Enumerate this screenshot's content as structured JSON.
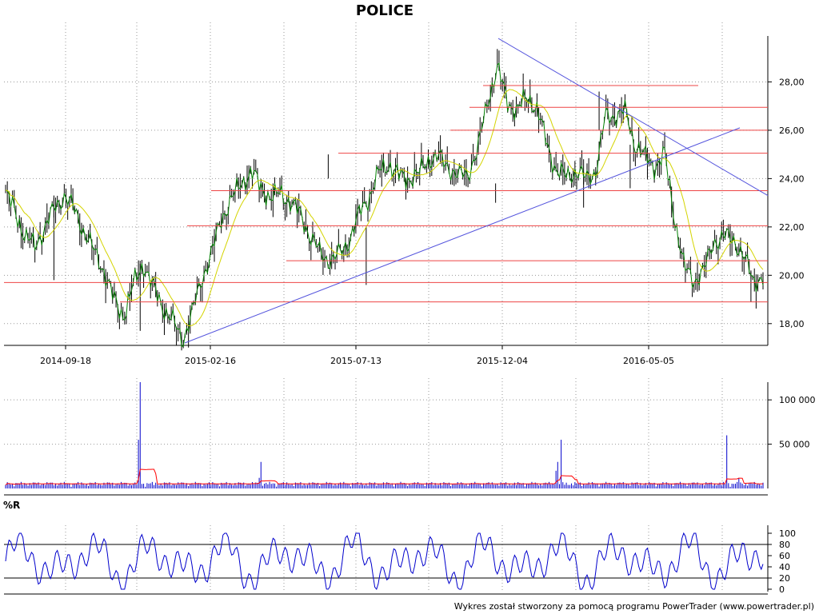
{
  "chart_data": [
    {
      "type": "candlestick",
      "title": "POLICE",
      "x_tick_labels": [
        "2014-09-18",
        "2015-02-16",
        "2015-07-13",
        "2015-12-04",
        "2016-05-05"
      ],
      "y_ticks": [
        "18,00",
        "20,00",
        "22,00",
        "24,00",
        "26,00",
        "28,00"
      ],
      "ylim": [
        17.1,
        29.9
      ],
      "grid": true,
      "close_series": [
        23.4,
        22.6,
        21.6,
        21.2,
        22.0,
        22.8,
        23.3,
        22.7,
        21.8,
        21.0,
        20.2,
        19.0,
        18.3,
        19.6,
        20.5,
        19.5,
        18.7,
        18.1,
        17.3,
        18.5,
        19.9,
        21.0,
        22.4,
        23.2,
        23.8,
        24.3,
        23.6,
        23.2,
        23.4,
        23.0,
        22.5,
        21.6,
        20.9,
        20.6,
        20.9,
        21.5,
        22.6,
        23.3,
        24.3,
        24.6,
        24.1,
        24.0,
        24.2,
        24.8,
        24.9,
        24.5,
        24.1,
        24.2,
        25.2,
        27.2,
        28.6,
        27.2,
        26.8,
        27.4,
        26.9,
        25.5,
        24.3,
        24.1,
        24.3,
        24.0,
        24.3,
        26.6,
        26.6,
        26.8,
        25.4,
        24.9,
        24.5,
        25.0,
        22.4,
        20.3,
        19.8,
        20.2,
        21.4,
        21.6,
        21.5,
        20.8,
        19.8,
        19.9
      ],
      "horizontal_levels": [
        27.85,
        26.95,
        26.0,
        25.05,
        23.5,
        22.05,
        20.6,
        19.7,
        18.9
      ],
      "trend_lines": [
        {
          "from": [
            "2015-02-16",
            17.2
          ],
          "to": [
            "2016-07",
            26.1
          ]
        },
        {
          "from": [
            "2015-12",
            29.8
          ],
          "to": [
            "2016-09",
            23.3
          ]
        }
      ],
      "moving_average": "yellow",
      "colors": {
        "candles": "#000000",
        "close_line": "#008000",
        "ma": "#d4d400",
        "levels": "#ee4444",
        "trend": "#5555dd"
      }
    },
    {
      "type": "bar",
      "name": "volume",
      "y_ticks": [
        "50 000",
        "100 000"
      ],
      "ylim": [
        0,
        120000
      ],
      "peaks": [
        120000,
        55000,
        60000
      ],
      "colors": {
        "bars": "#0000cc",
        "ma": "#ff0000"
      }
    },
    {
      "type": "line",
      "name": "%R",
      "label": "%R",
      "y_ticks": [
        "0",
        "20",
        "40",
        "60",
        "80",
        "100"
      ],
      "ylim": [
        0,
        100
      ],
      "reference_levels": [
        20,
        80
      ],
      "colors": {
        "line": "#0000cc",
        "levels": "#000000"
      }
    }
  ],
  "footer": "Wykres został stworzony za pomocą programu PowerTrader (www.powertrader.pl)"
}
